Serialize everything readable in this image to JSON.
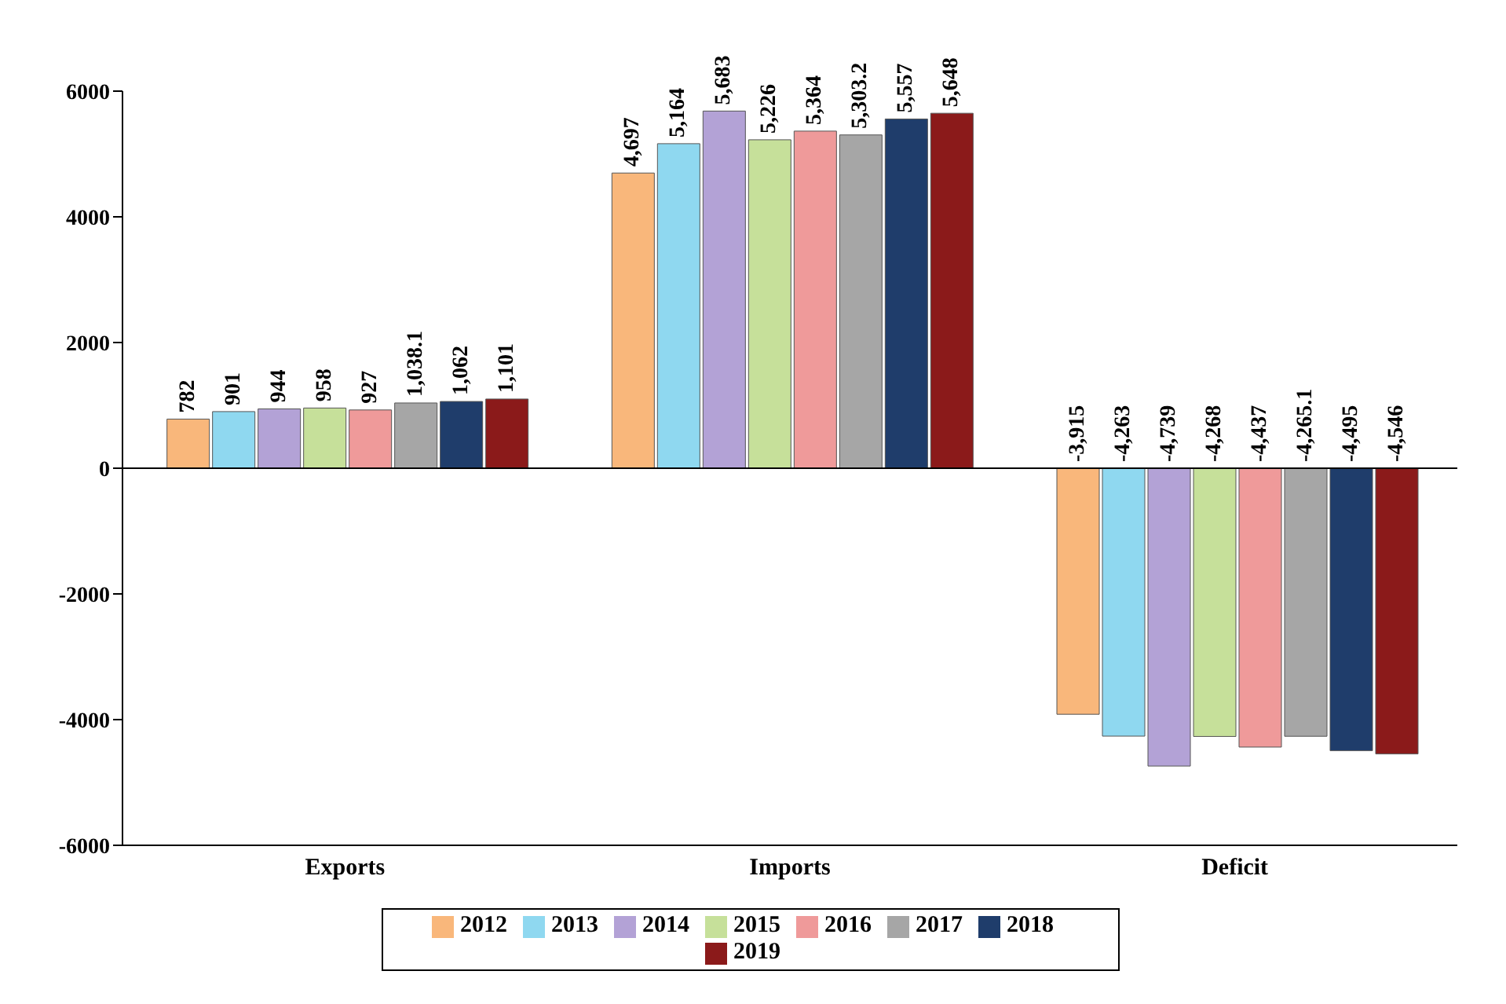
{
  "chart_data": {
    "type": "bar",
    "categories": [
      "Exports",
      "Imports",
      "Deficit"
    ],
    "ylim": [
      -6000,
      6000
    ],
    "yticks": [
      -6000,
      -4000,
      -2000,
      0,
      2000,
      4000,
      6000
    ],
    "legend": "bottom",
    "series": [
      {
        "name": "2012",
        "color": "#f9b77b",
        "values": [
          782,
          4697,
          -3915
        ],
        "value_labels": [
          "782",
          "4,697",
          "-3,915"
        ]
      },
      {
        "name": "2013",
        "color": "#8fd8f0",
        "values": [
          901,
          5164,
          -4263
        ],
        "value_labels": [
          "901",
          "5,164",
          "-4,263"
        ]
      },
      {
        "name": "2014",
        "color": "#b3a2d6",
        "values": [
          944,
          5683,
          -4739
        ],
        "value_labels": [
          "944",
          "5,683",
          "-4,739"
        ]
      },
      {
        "name": "2015",
        "color": "#c6e09a",
        "values": [
          958,
          5226,
          -4268
        ],
        "value_labels": [
          "958",
          "5,226",
          "-4,268"
        ]
      },
      {
        "name": "2016",
        "color": "#ef9a9a",
        "values": [
          927,
          5364,
          -4437
        ],
        "value_labels": [
          "927",
          "5,364",
          "-4,437"
        ]
      },
      {
        "name": "2017",
        "color": "#a6a6a6",
        "values": [
          1038.1,
          5303.2,
          -4265.1
        ],
        "value_labels": [
          "1,038.1",
          "5,303.2",
          "-4,265.1"
        ]
      },
      {
        "name": "2018",
        "color": "#1f3d6b",
        "values": [
          1062,
          5557,
          -4495
        ],
        "value_labels": [
          "1,062",
          "5,557",
          "-4,495"
        ]
      },
      {
        "name": "2019",
        "color": "#8b1a1a",
        "values": [
          1101,
          5648,
          -4546
        ],
        "value_labels": [
          "1,101",
          "5,648",
          "-4,546"
        ]
      }
    ]
  }
}
